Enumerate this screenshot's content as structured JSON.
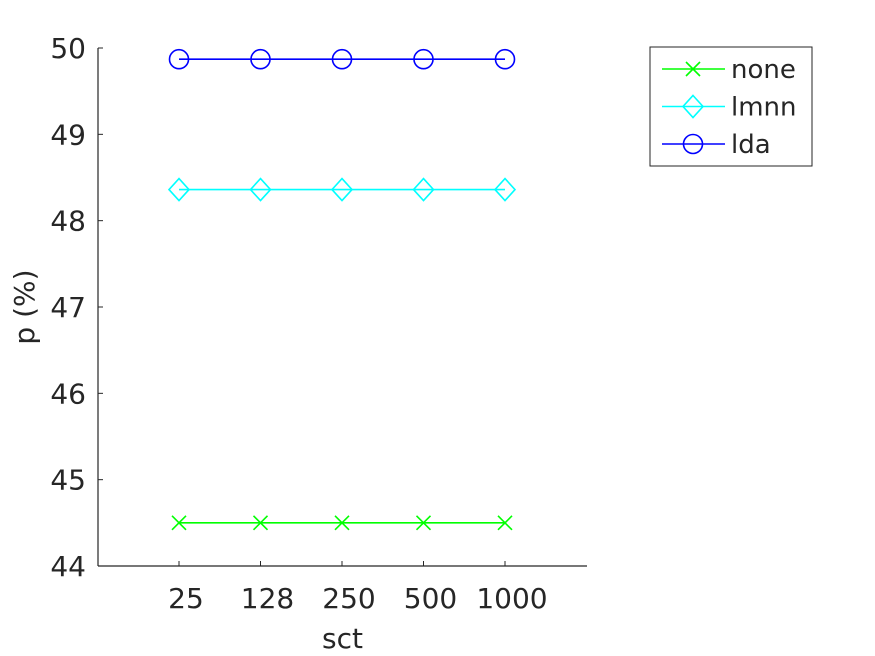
{
  "chart_data": {
    "type": "line",
    "categories": [
      "25",
      "128",
      "250",
      "500",
      "1000"
    ],
    "xlabel": "sct",
    "ylabel": "p (%)",
    "ylim": [
      44,
      50
    ],
    "yticks": [
      "44",
      "45",
      "46",
      "47",
      "48",
      "49",
      "50"
    ],
    "grid": false,
    "legend_position": "outside-top-right",
    "series": [
      {
        "name": "none",
        "values": [
          44.5,
          44.5,
          44.5,
          44.5,
          44.5
        ],
        "color": "#00ff00",
        "marker": "x"
      },
      {
        "name": "lmnn",
        "values": [
          48.36,
          48.36,
          48.36,
          48.36,
          48.36
        ],
        "color": "#00ffff",
        "marker": "diamond"
      },
      {
        "name": "lda",
        "values": [
          49.87,
          49.87,
          49.87,
          49.87,
          49.87
        ],
        "color": "#0000ff",
        "marker": "circle"
      }
    ]
  }
}
